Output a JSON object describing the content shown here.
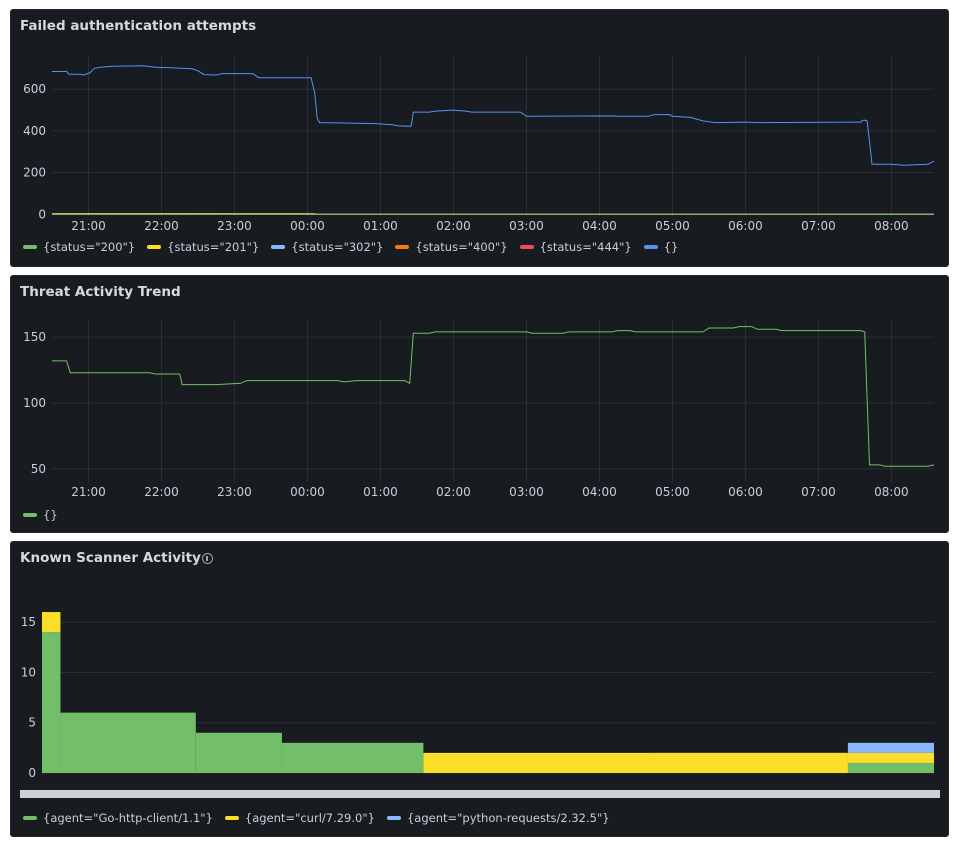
{
  "panels": [
    {
      "title": "Failed authentication attempts",
      "legend": [
        {
          "label": "{status=\"200\"}",
          "color": "#73bf69"
        },
        {
          "label": "{status=\"201\"}",
          "color": "#fade2a"
        },
        {
          "label": "{status=\"302\"}",
          "color": "#8ab8ff"
        },
        {
          "label": "{status=\"400\"}",
          "color": "#ff780a"
        },
        {
          "label": "{status=\"444\"}",
          "color": "#f2495c"
        },
        {
          "label": "{}",
          "color": "#5794f2"
        }
      ]
    },
    {
      "title": "Threat Activity Trend",
      "legend": [
        {
          "label": "{}",
          "color": "#73bf69"
        }
      ]
    },
    {
      "title": "Known Scanner Activity",
      "info_icon": "info-circle-icon",
      "legend": [
        {
          "label": "{agent=\"Go-http-client/1.1\"}",
          "color": "#73bf69"
        },
        {
          "label": "{agent=\"curl/7.29.0\"}",
          "color": "#fade2a"
        },
        {
          "label": "{agent=\"python-requests/2.32.5\"}",
          "color": "#8ab8ff"
        }
      ]
    }
  ],
  "chart_data": [
    {
      "type": "line",
      "title": "Failed authentication attempts",
      "x_start": "20:30",
      "x_end": "08:35",
      "xticks": [
        "21:00",
        "22:00",
        "23:00",
        "00:00",
        "01:00",
        "02:00",
        "03:00",
        "04:00",
        "05:00",
        "06:00",
        "07:00",
        "08:00"
      ],
      "yticks": [
        0,
        200,
        400,
        600
      ],
      "ylim": [
        -8,
        740
      ],
      "grid": true,
      "legend_position": "bottom",
      "series": [
        {
          "name": "{}",
          "color": "#5794f2",
          "points": [
            [
              "20:30",
              685
            ],
            [
              "20:42",
              685
            ],
            [
              "20:44",
              672
            ],
            [
              "20:52",
              672
            ],
            [
              "20:56",
              668
            ],
            [
              "21:01",
              678
            ],
            [
              "21:05",
              700
            ],
            [
              "21:10",
              705
            ],
            [
              "21:20",
              710
            ],
            [
              "21:45",
              712
            ],
            [
              "21:55",
              705
            ],
            [
              "22:10",
              702
            ],
            [
              "22:25",
              698
            ],
            [
              "22:30",
              688
            ],
            [
              "22:35",
              670
            ],
            [
              "22:45",
              668
            ],
            [
              "22:50",
              675
            ],
            [
              "23:15",
              675
            ],
            [
              "23:20",
              655
            ],
            [
              "23:55",
              655
            ],
            [
              "00:03",
              655
            ],
            [
              "00:06",
              580
            ],
            [
              "00:08",
              460
            ],
            [
              "00:10",
              440
            ],
            [
              "00:30",
              438
            ],
            [
              "00:55",
              435
            ],
            [
              "01:10",
              430
            ],
            [
              "01:15",
              424
            ],
            [
              "01:25",
              422
            ],
            [
              "01:26",
              450
            ],
            [
              "01:27",
              490
            ],
            [
              "01:40",
              490
            ],
            [
              "01:45",
              495
            ],
            [
              "02:00",
              500
            ],
            [
              "02:10",
              495
            ],
            [
              "02:15",
              490
            ],
            [
              "02:55",
              490
            ],
            [
              "03:00",
              470
            ],
            [
              "04:10",
              472
            ],
            [
              "04:15",
              470
            ],
            [
              "04:40",
              470
            ],
            [
              "04:45",
              478
            ],
            [
              "04:58",
              478
            ],
            [
              "05:00",
              470
            ],
            [
              "05:15",
              465
            ],
            [
              "05:25",
              448
            ],
            [
              "05:35",
              440
            ],
            [
              "06:00",
              442
            ],
            [
              "06:10",
              440
            ],
            [
              "07:25",
              442
            ],
            [
              "07:35",
              442
            ],
            [
              "07:36",
              450
            ],
            [
              "07:38",
              452
            ],
            [
              "07:40",
              448
            ],
            [
              "07:42",
              350
            ],
            [
              "07:44",
              240
            ],
            [
              "08:00",
              240
            ],
            [
              "08:10",
              235
            ],
            [
              "08:30",
              240
            ],
            [
              "08:35",
              255
            ]
          ]
        },
        {
          "name": "{status=\"201\"}",
          "color": "#fade2a",
          "points": [
            [
              "20:30",
              4
            ],
            [
              "00:05",
              4
            ],
            [
              "00:07",
              1
            ],
            [
              "08:35",
              1
            ]
          ]
        },
        {
          "name": "{status=\"444\"}",
          "color": "#f2495c",
          "points": [
            [
              "20:30",
              1
            ],
            [
              "08:35",
              1
            ]
          ]
        },
        {
          "name": "{status=\"400\"}",
          "color": "#ff780a",
          "points": [
            [
              "20:30",
              2
            ],
            [
              "00:05",
              3
            ],
            [
              "00:10",
              1
            ],
            [
              "08:35",
              1
            ]
          ]
        },
        {
          "name": "{status=\"302\"}",
          "color": "#8ab8ff",
          "points": [
            [
              "20:30",
              0
            ],
            [
              "08:35",
              0
            ]
          ]
        },
        {
          "name": "{status=\"200\"}",
          "color": "#73bf69",
          "points": [
            [
              "20:30",
              0
            ],
            [
              "08:35",
              0
            ]
          ]
        }
      ]
    },
    {
      "type": "line",
      "title": "Threat Activity Trend",
      "x_start": "20:30",
      "x_end": "08:35",
      "xticks": [
        "21:00",
        "22:00",
        "23:00",
        "00:00",
        "01:00",
        "02:00",
        "03:00",
        "04:00",
        "05:00",
        "06:00",
        "07:00",
        "08:00"
      ],
      "yticks": [
        50,
        100,
        150
      ],
      "ylim": [
        40,
        160
      ],
      "grid": true,
      "legend_position": "bottom",
      "series": [
        {
          "name": "{}",
          "color": "#73bf69",
          "points": [
            [
              "20:30",
              132
            ],
            [
              "20:42",
              132
            ],
            [
              "20:45",
              123
            ],
            [
              "21:50",
              123
            ],
            [
              "21:55",
              122
            ],
            [
              "22:15",
              122
            ],
            [
              "22:17",
              114
            ],
            [
              "22:45",
              114
            ],
            [
              "23:05",
              115
            ],
            [
              "23:10",
              117
            ],
            [
              "00:25",
              117
            ],
            [
              "00:30",
              116
            ],
            [
              "00:40",
              117
            ],
            [
              "01:20",
              117
            ],
            [
              "01:24",
              115
            ],
            [
              "01:27",
              153
            ],
            [
              "01:40",
              153
            ],
            [
              "01:45",
              154
            ],
            [
              "03:00",
              154
            ],
            [
              "03:05",
              153
            ],
            [
              "03:30",
              153
            ],
            [
              "03:35",
              154
            ],
            [
              "04:10",
              154
            ],
            [
              "04:15",
              155
            ],
            [
              "04:25",
              155
            ],
            [
              "04:30",
              154
            ],
            [
              "05:25",
              154
            ],
            [
              "05:30",
              157
            ],
            [
              "05:50",
              157
            ],
            [
              "05:55",
              158
            ],
            [
              "06:05",
              158
            ],
            [
              "06:10",
              156
            ],
            [
              "06:25",
              156
            ],
            [
              "06:30",
              155
            ],
            [
              "07:35",
              155
            ],
            [
              "07:38",
              154
            ],
            [
              "07:42",
              53
            ],
            [
              "07:50",
              53
            ],
            [
              "07:55",
              52
            ],
            [
              "08:30",
              52
            ],
            [
              "08:35",
              53
            ]
          ]
        }
      ]
    },
    {
      "type": "bar",
      "title": "Known Scanner Activity",
      "stacked": true,
      "x_start": "20:30",
      "x_end": "08:35",
      "yticks": [
        0,
        5,
        10,
        15
      ],
      "ylim": [
        0,
        17
      ],
      "grid": true,
      "legend_position": "bottom",
      "series": [
        {
          "name": "{agent=\"Go-http-client/1.1\"}",
          "color": "#73bf69",
          "segments": [
            [
              "20:30",
              "20:45",
              14
            ],
            [
              "20:45",
              "22:35",
              6
            ],
            [
              "22:35",
              "23:45",
              4
            ],
            [
              "23:45",
              "01:40",
              3
            ],
            [
              "01:40",
              "03:20",
              1
            ],
            [
              "03:20",
              "04:45",
              0
            ],
            [
              "04:45",
              "07:25",
              2
            ],
            [
              "07:25",
              "08:35",
              1
            ]
          ]
        },
        {
          "name": "{agent=\"curl/7.29.0\"}",
          "color": "#fade2a",
          "segments": [
            [
              "20:30",
              "20:45",
              2
            ],
            [
              "20:45",
              "01:40",
              0
            ],
            [
              "01:40",
              "07:25",
              2
            ],
            [
              "07:25",
              "08:35",
              1
            ]
          ]
        },
        {
          "name": "{agent=\"python-requests/2.32.5\"}",
          "color": "#8ab8ff",
          "segments": [
            [
              "20:30",
              "07:25",
              0
            ],
            [
              "07:25",
              "08:35",
              1
            ]
          ]
        }
      ]
    }
  ]
}
